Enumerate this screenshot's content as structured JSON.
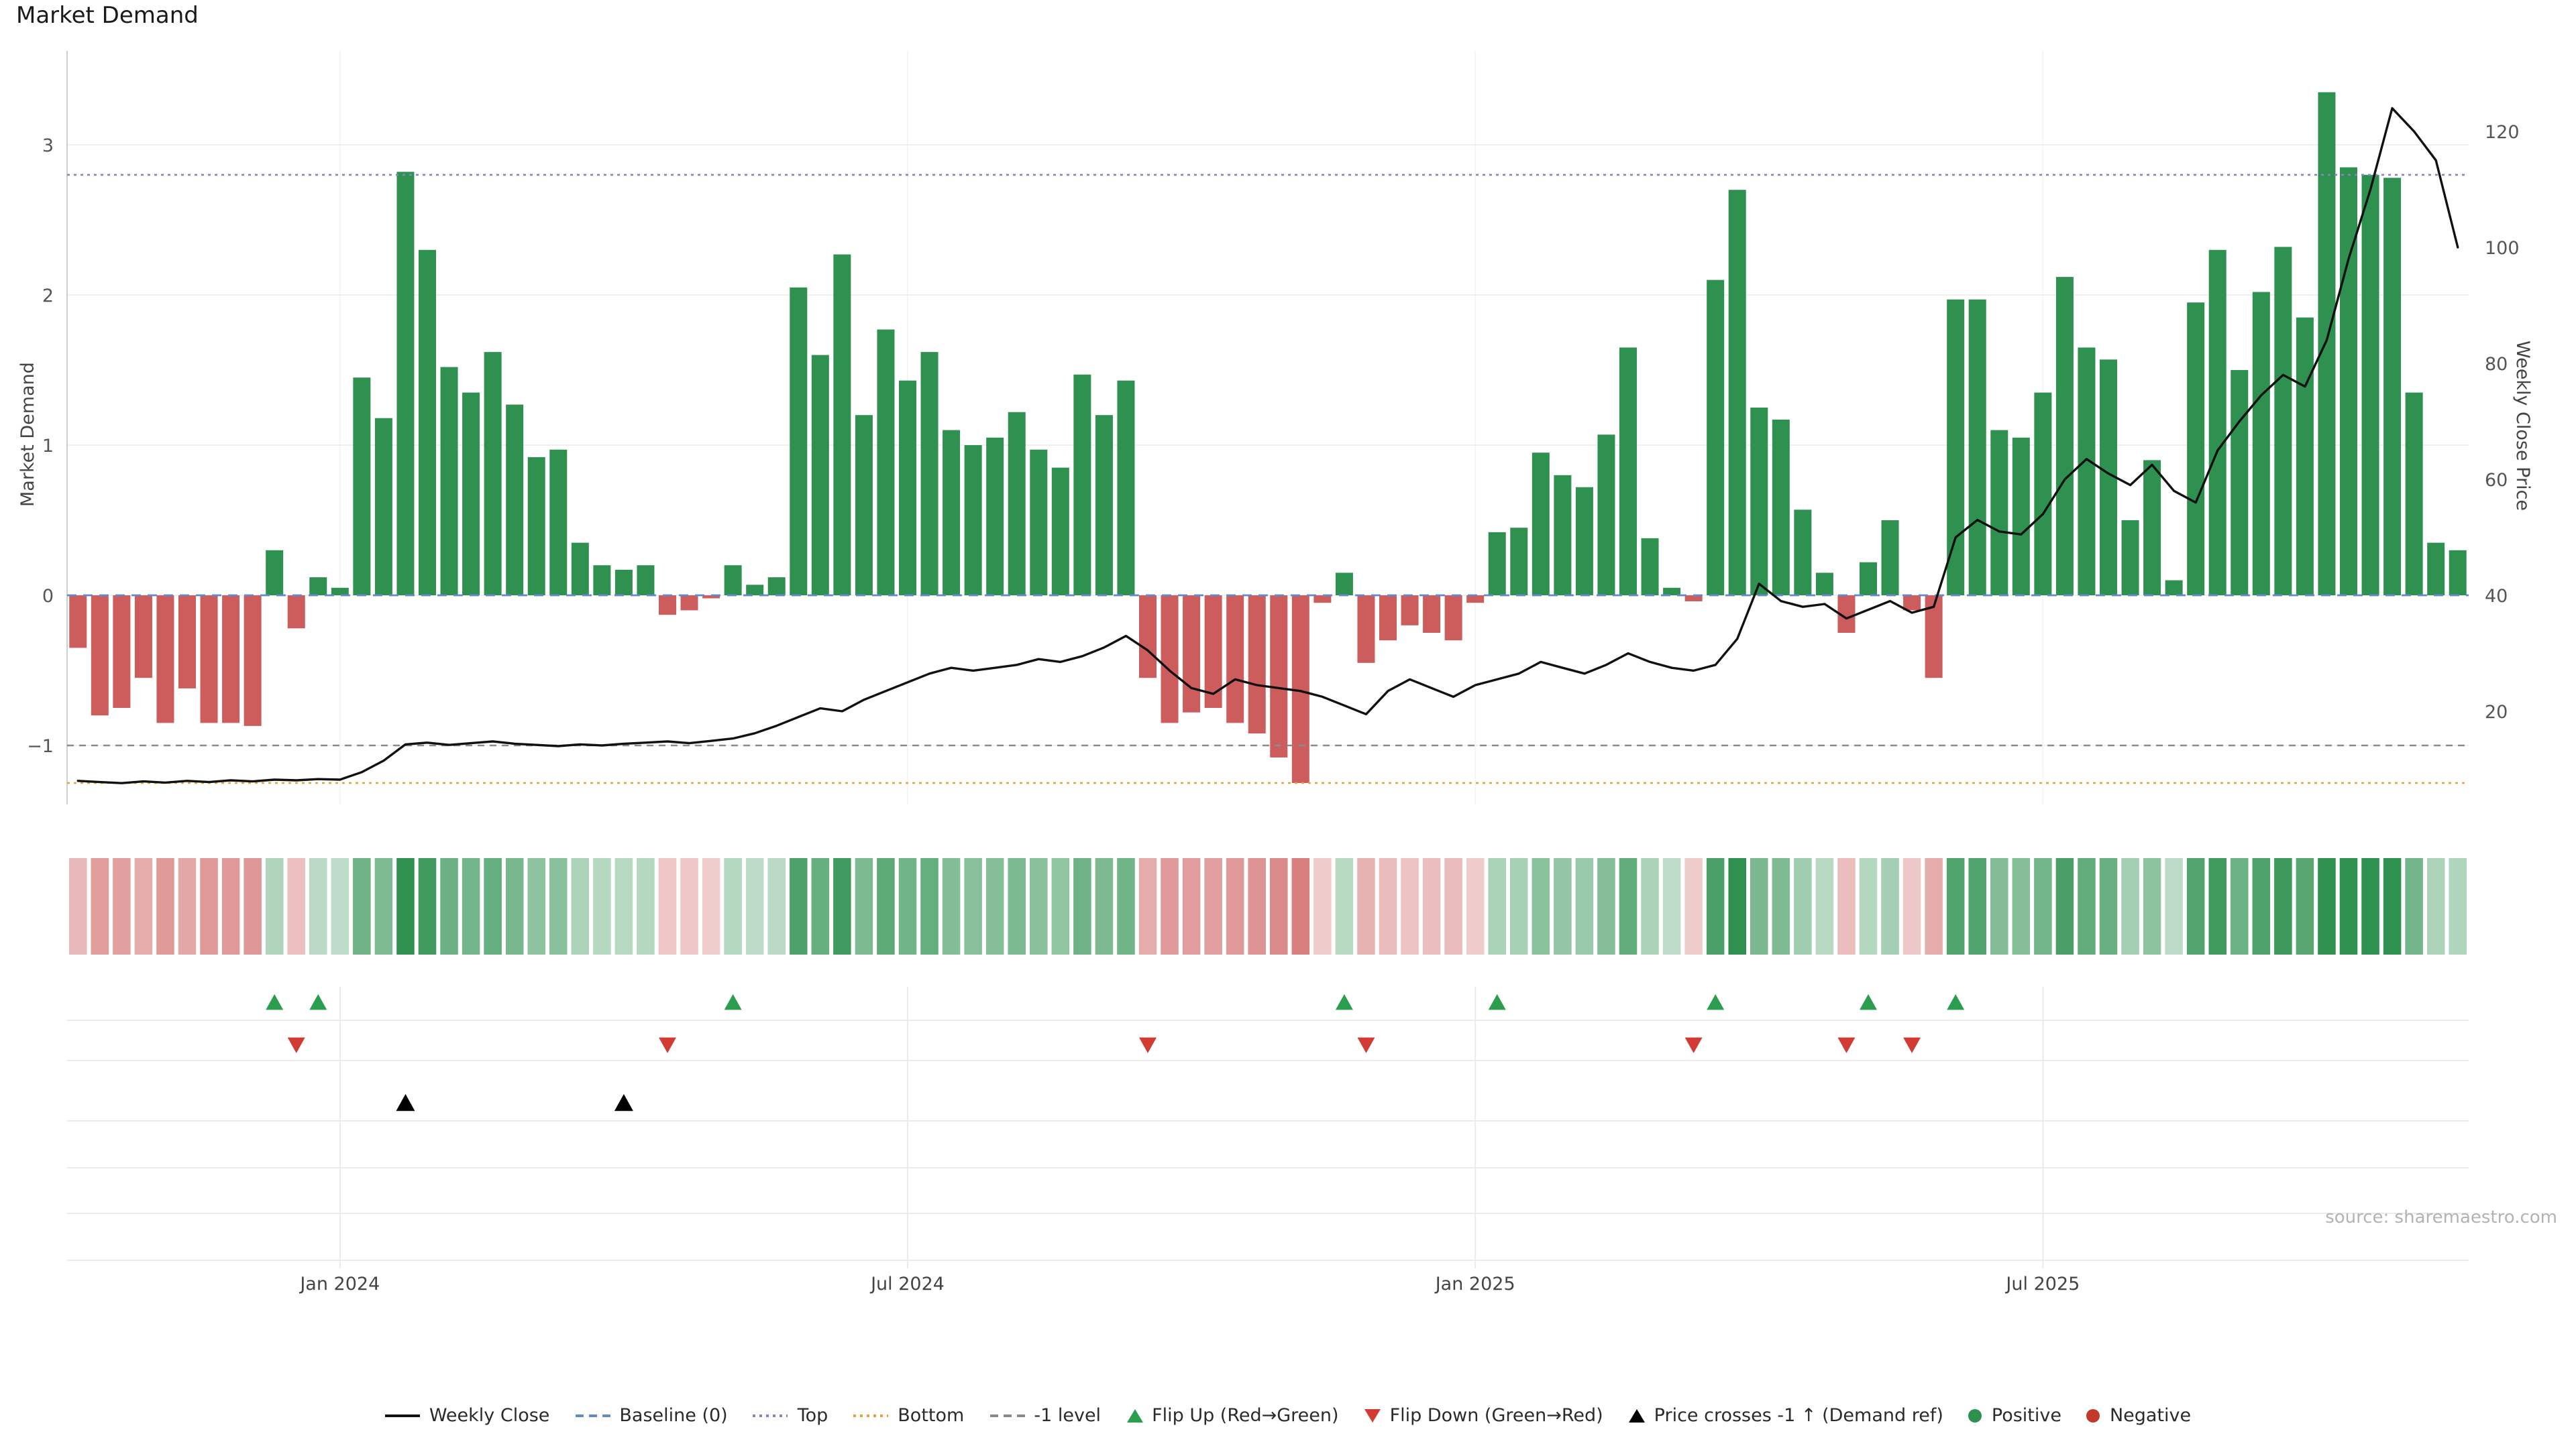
{
  "title": "Market Demand",
  "source": "source: sharemaestro.com",
  "colors": {
    "positive": "#2e9150",
    "negative": "#cd5c5c",
    "line": "#111111",
    "baseline": "#6488c8",
    "top": "#8585bb",
    "bottom": "#e2a33c",
    "minus1": "#8a8a8a",
    "flip_up": "#2a9d4e",
    "flip_down": "#d23b34",
    "cross": "#000000",
    "grid": "#efefef",
    "tick_text": "#555555"
  },
  "chart_data": {
    "type": "bar",
    "subtype": "bar+line+heatmap",
    "title": "Market Demand",
    "n_weeks": 110,
    "x_ticks": [
      {
        "index": 12,
        "label": "Jan 2024"
      },
      {
        "index": 38,
        "label": "Jul 2024"
      },
      {
        "index": 64,
        "label": "Jan 2025"
      },
      {
        "index": 90,
        "label": "Jul 2025"
      }
    ],
    "axes": {
      "left_label": "Market Demand",
      "right_label": "Weekly Close Price",
      "left_ticks": [
        -1,
        0,
        1,
        2,
        3
      ],
      "right_ticks": [
        20,
        40,
        60,
        80,
        100,
        120
      ],
      "left_ylim": [
        -1.4,
        3.6
      ],
      "right_ylim": [
        5,
        135
      ]
    },
    "reference_lines": {
      "baseline": 0,
      "top": 2.8,
      "bottom": -1.25,
      "minus1_level": -1
    },
    "series": [
      {
        "name": "Market Demand",
        "type": "bar",
        "axis": "left",
        "values": [
          -0.35,
          -0.8,
          -0.75,
          -0.55,
          -0.85,
          -0.62,
          -0.85,
          -0.85,
          -0.87,
          0.3,
          -0.22,
          0.12,
          0.05,
          1.45,
          1.18,
          2.82,
          2.3,
          1.52,
          1.35,
          1.62,
          1.27,
          0.92,
          0.97,
          0.35,
          0.2,
          0.17,
          0.2,
          -0.13,
          -0.1,
          -0.02,
          0.2,
          0.07,
          0.12,
          2.05,
          1.6,
          2.27,
          1.2,
          1.77,
          1.43,
          1.62,
          1.1,
          1.0,
          1.05,
          1.22,
          0.97,
          0.85,
          1.47,
          1.2,
          1.43,
          -0.55,
          -0.85,
          -0.78,
          -0.75,
          -0.85,
          -0.92,
          -1.08,
          -1.25,
          -0.05,
          0.15,
          -0.45,
          -0.3,
          -0.2,
          -0.25,
          -0.3,
          -0.05,
          0.42,
          0.45,
          0.95,
          0.8,
          0.72,
          1.07,
          1.65,
          0.38,
          0.05,
          -0.04,
          2.1,
          2.7,
          1.25,
          1.17,
          0.57,
          0.15,
          -0.25,
          0.22,
          0.5,
          -0.1,
          -0.55,
          1.97,
          1.97,
          1.1,
          1.05,
          1.35,
          2.12,
          1.65,
          1.57,
          0.5,
          0.9,
          0.1,
          1.95,
          2.3,
          1.5,
          2.02,
          2.32,
          1.85,
          3.35,
          2.85,
          2.8,
          2.78,
          1.35,
          0.35,
          0.3
        ]
      },
      {
        "name": "Weekly Close",
        "type": "line",
        "axis": "right",
        "values": [
          8.0,
          7.8,
          7.6,
          7.9,
          7.7,
          8.0,
          7.8,
          8.1,
          7.9,
          8.2,
          8.1,
          8.3,
          8.2,
          9.5,
          11.5,
          14.3,
          14.6,
          14.2,
          14.5,
          14.8,
          14.4,
          14.2,
          14.0,
          14.3,
          14.1,
          14.4,
          14.6,
          14.8,
          14.5,
          14.9,
          15.3,
          16.2,
          17.5,
          19.0,
          20.5,
          20.0,
          22.0,
          23.5,
          25.0,
          26.5,
          27.5,
          27.0,
          27.5,
          28.0,
          29.0,
          28.5,
          29.5,
          31.0,
          33.0,
          30.5,
          27.0,
          24.0,
          23.0,
          25.5,
          24.5,
          24.0,
          23.5,
          22.5,
          21.0,
          19.5,
          23.5,
          25.5,
          24.0,
          22.5,
          24.5,
          25.5,
          26.5,
          28.5,
          27.5,
          26.5,
          28.0,
          30.0,
          28.5,
          27.5,
          27.0,
          28.0,
          32.5,
          42.0,
          39.0,
          38.0,
          38.5,
          36.0,
          37.5,
          39.0,
          37.0,
          38.0,
          50.0,
          53.0,
          51.0,
          50.5,
          54.0,
          60.0,
          63.5,
          61.0,
          59.0,
          62.5,
          58.0,
          56.0,
          65.0,
          70.0,
          74.5,
          78.0,
          76.0,
          84.0,
          98.0,
          110.0,
          124.0,
          120.0,
          115.0,
          100.0
        ]
      }
    ],
    "heatmap": {
      "description": "weekly demand sign and intensity strip, one cell per week, derived from bar series"
    },
    "markers": {
      "flip_up": {
        "label": "Flip Up (Red→Green)",
        "indices": [
          9,
          11,
          30,
          58,
          65,
          75,
          82,
          86
        ]
      },
      "flip_down": {
        "label": "Flip Down (Green→Red)",
        "indices": [
          10,
          27,
          49,
          59,
          74,
          81,
          84
        ]
      },
      "price_cross": {
        "label": "Price crosses -1 ↑ (Demand ref)",
        "indices": [
          15,
          25
        ]
      }
    }
  },
  "legend": {
    "items": [
      {
        "label": "Weekly Close",
        "marker": "line",
        "color": "#111111"
      },
      {
        "label": "Baseline (0)",
        "marker": "dashed",
        "color": "#6488c8"
      },
      {
        "label": "Top",
        "marker": "dotted",
        "color": "#8585bb"
      },
      {
        "label": "Bottom",
        "marker": "dotted",
        "color": "#e2a33c"
      },
      {
        "label": "-1 level",
        "marker": "dashed",
        "color": "#8a8a8a"
      },
      {
        "label": "Flip Up (Red→Green)",
        "marker": "triangle-up",
        "color": "#2a9d4e"
      },
      {
        "label": "Flip Down (Green→Red)",
        "marker": "triangle-down",
        "color": "#d23b34"
      },
      {
        "label": "Price crosses -1 ↑ (Demand ref)",
        "marker": "triangle-up",
        "color": "#000000"
      },
      {
        "label": "Positive",
        "marker": "circle",
        "color": "#2e9150"
      },
      {
        "label": "Negative",
        "marker": "circle",
        "color": "#c0392b"
      }
    ]
  }
}
